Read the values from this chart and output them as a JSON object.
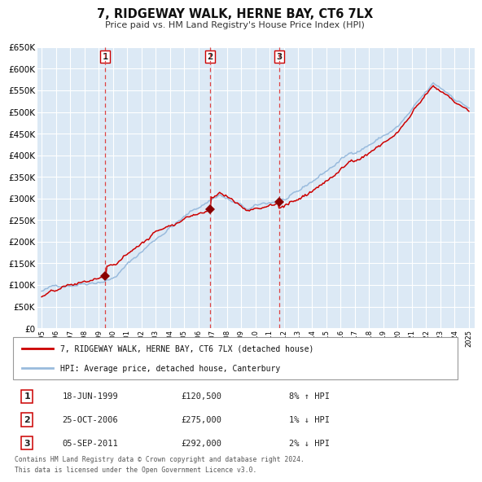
{
  "title": "7, RIDGEWAY WALK, HERNE BAY, CT6 7LX",
  "subtitle": "Price paid vs. HM Land Registry's House Price Index (HPI)",
  "red_label": "7, RIDGEWAY WALK, HERNE BAY, CT6 7LX (detached house)",
  "blue_label": "HPI: Average price, detached house, Canterbury",
  "footer1": "Contains HM Land Registry data © Crown copyright and database right 2024.",
  "footer2": "This data is licensed under the Open Government Licence v3.0.",
  "transactions": [
    {
      "num": 1,
      "date": "18-JUN-1999",
      "price": 120500,
      "pct": "8%",
      "dir": "↑",
      "year": 1999.46
    },
    {
      "num": 2,
      "date": "25-OCT-2006",
      "price": 275000,
      "pct": "1%",
      "dir": "↓",
      "year": 2006.81
    },
    {
      "num": 3,
      "date": "05-SEP-2011",
      "price": 292000,
      "pct": "2%",
      "dir": "↓",
      "year": 2011.67
    }
  ],
  "sale_prices": [
    120500,
    275000,
    292000
  ],
  "sale_years": [
    1999.46,
    2006.81,
    2011.67
  ],
  "ylim": [
    0,
    650000
  ],
  "yticks": [
    0,
    50000,
    100000,
    150000,
    200000,
    250000,
    300000,
    350000,
    400000,
    450000,
    500000,
    550000,
    600000,
    650000
  ],
  "background_color": "#dce9f5",
  "grid_color": "#ffffff",
  "red_line_color": "#cc0000",
  "blue_line_color": "#99bbdd",
  "dashed_color": "#dd4444",
  "marker_color": "#880000",
  "box_edge_color": "#cc0000"
}
